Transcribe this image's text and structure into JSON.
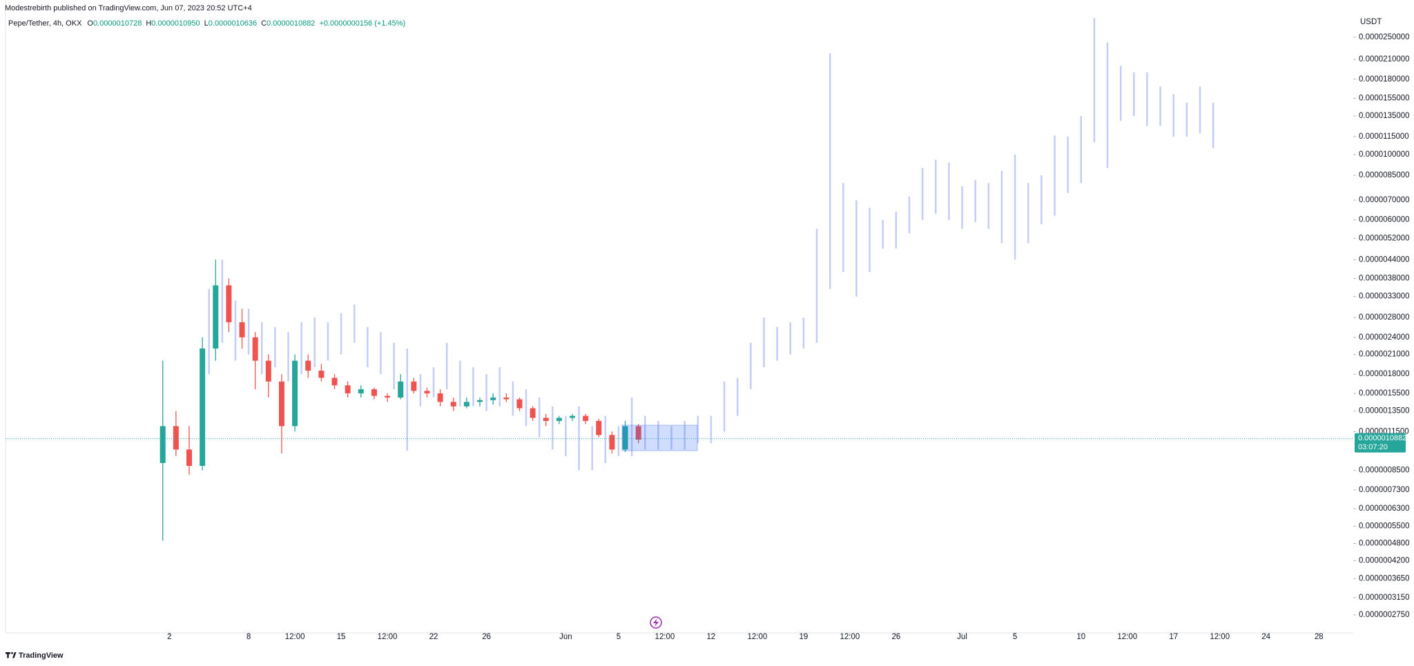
{
  "header": {
    "author": "Modestrebirth published on TradingView.com, Jun 07, 2023 20:52 UTC+4",
    "symbol": "Pepe/Tether, 4h, OKX",
    "open_label": "O",
    "open": "0.0000010728",
    "high_label": "H",
    "high": "0.0000010950",
    "low_label": "L",
    "low": "0.0000010636",
    "close_label": "C",
    "close": "0.0000010882",
    "change": "+0.0000000156 (+1.45%)"
  },
  "footer": {
    "brand": "TradingView"
  },
  "chart_data": {
    "type": "candlestick",
    "currency": "USDT",
    "log_scale": true,
    "up_color": "#26a69a",
    "down_color": "#ef5350",
    "projection_color": "#c3cdf7",
    "xlim": [
      -10.4,
      91.6
    ],
    "ylim": [
      2.39e-07,
      3.34e-05
    ],
    "xticks": [
      2,
      8,
      {
        "value": 11.5,
        "label": "12:00"
      },
      15,
      {
        "value": 18.5,
        "label": "12:00"
      },
      22,
      26,
      {
        "value": 32,
        "label": "Jun"
      },
      {
        "value": 36,
        "label": "5"
      },
      {
        "value": 39.5,
        "label": "12:00"
      },
      {
        "value": 43,
        "label": "12"
      },
      {
        "value": 46.5,
        "label": "12:00"
      },
      {
        "value": 50,
        "label": "19"
      },
      {
        "value": 53.5,
        "label": "12:00"
      },
      {
        "value": 57,
        "label": "26"
      },
      {
        "value": 62,
        "label": "Jul"
      },
      {
        "value": 66,
        "label": "5"
      },
      {
        "value": 71,
        "label": "10"
      },
      {
        "value": 74.5,
        "label": "12:00"
      },
      {
        "value": 78,
        "label": "17"
      },
      {
        "value": 81.5,
        "label": "12:00"
      },
      {
        "value": 85,
        "label": "24"
      },
      {
        "value": 89,
        "label": "28"
      }
    ],
    "yticks": [
      {
        "value": 2.5e-05,
        "label": "0.0000250000"
      },
      {
        "value": 2.1e-05,
        "label": "0.0000210000"
      },
      {
        "value": 1.8e-05,
        "label": "0.0000180000"
      },
      {
        "value": 1.55e-05,
        "label": "0.0000155000"
      },
      {
        "value": 1.35e-05,
        "label": "0.0000135000"
      },
      {
        "value": 1.15e-05,
        "label": "0.0000115000"
      },
      {
        "value": 1e-05,
        "label": "0.0000100000"
      },
      {
        "value": 8.5e-06,
        "label": "0.0000085000"
      },
      {
        "value": 7e-06,
        "label": "0.0000070000"
      },
      {
        "value": 6e-06,
        "label": "0.0000060000"
      },
      {
        "value": 5.2e-06,
        "label": "0.0000052000"
      },
      {
        "value": 4.4e-06,
        "label": "0.0000044000"
      },
      {
        "value": 3.8e-06,
        "label": "0.0000038000"
      },
      {
        "value": 3.3e-06,
        "label": "0.0000033000"
      },
      {
        "value": 2.8e-06,
        "label": "0.0000028000"
      },
      {
        "value": 2.4e-06,
        "label": "0.0000024000"
      },
      {
        "value": 2.1e-06,
        "label": "0.0000021000"
      },
      {
        "value": 1.8e-06,
        "label": "0.0000018000"
      },
      {
        "value": 1.55e-06,
        "label": "0.0000015500"
      },
      {
        "value": 1.35e-06,
        "label": "0.0000013500"
      },
      {
        "value": 1.15e-06,
        "label": "0.0000011500"
      },
      {
        "value": 8.5e-07,
        "label": "0.0000008500"
      },
      {
        "value": 7.3e-07,
        "label": "0.0000007300"
      },
      {
        "value": 6.3e-07,
        "label": "0.0000006300"
      },
      {
        "value": 5.5e-07,
        "label": "0.0000005500"
      },
      {
        "value": 4.8e-07,
        "label": "0.0000004800"
      },
      {
        "value": 4.2e-07,
        "label": "0.0000004200"
      },
      {
        "value": 3.65e-07,
        "label": "0.0000003650"
      },
      {
        "value": 3.15e-07,
        "label": "0.0000003150"
      },
      {
        "value": 2.75e-07,
        "label": "0.0000002750"
      }
    ],
    "price_line": {
      "value": 1.0882e-06,
      "label": "0.0000010882",
      "countdown": "03:07:20"
    },
    "candles": {
      "x": [
        1.5,
        2.5,
        3.5,
        4.5,
        5.5,
        6.5,
        7.5,
        8.5,
        9.5,
        10.5,
        11.5,
        12.5,
        13.5,
        14.5,
        15.5,
        16.5,
        17.5,
        18.5,
        19.5,
        20.5,
        21.5,
        22.5,
        23.5,
        24.5,
        25.5,
        26.5,
        27.5,
        28.5,
        29.5,
        30.5,
        31.5,
        32.5,
        33.5,
        34.5,
        35.5,
        36.5,
        37.5
      ],
      "open": [
        9e-07,
        1.2e-06,
        1e-06,
        8.8e-07,
        2.2e-06,
        3.6e-06,
        2.7e-06,
        2.4e-06,
        2e-06,
        1.7e-06,
        1.2e-06,
        2e-06,
        1.85e-06,
        1.75e-06,
        1.65e-06,
        1.55e-06,
        1.6e-06,
        1.52e-06,
        1.5e-06,
        1.7e-06,
        1.58e-06,
        1.55e-06,
        1.45e-06,
        1.4e-06,
        1.45e-06,
        1.47e-06,
        1.5e-06,
        1.48e-06,
        1.38e-06,
        1.28e-06,
        1.25e-06,
        1.28e-06,
        1.3e-06,
        1.25e-06,
        1.12e-06,
        1e-06,
        1.2e-06
      ],
      "high": [
        2e-06,
        1.35e-06,
        1.2e-06,
        2.4e-06,
        4.4e-06,
        3.8e-06,
        3e-06,
        2.5e-06,
        2.1e-06,
        1.8e-06,
        2.1e-06,
        2.1e-06,
        1.95e-06,
        1.8e-06,
        1.7e-06,
        1.65e-06,
        1.62e-06,
        1.55e-06,
        1.8e-06,
        1.75e-06,
        1.62e-06,
        1.6e-06,
        1.5e-06,
        1.5e-06,
        1.5e-06,
        1.55e-06,
        1.55e-06,
        1.5e-06,
        1.4e-06,
        1.32e-06,
        1.3e-06,
        1.32e-06,
        1.32e-06,
        1.27e-06,
        1.15e-06,
        1.25e-06,
        1.22e-06
      ],
      "low": [
        4.9e-07,
        9.5e-07,
        8.2e-07,
        8.5e-07,
        2e-06,
        2.5e-06,
        2.2e-06,
        1.6e-06,
        1.5e-06,
        9.7e-07,
        1.15e-06,
        1.75e-06,
        1.7e-06,
        1.6e-06,
        1.5e-06,
        1.5e-06,
        1.48e-06,
        1.45e-06,
        1.48e-06,
        1.55e-06,
        1.5e-06,
        1.4e-06,
        1.35e-06,
        1.38e-06,
        1.4e-06,
        1.42e-06,
        1.45e-06,
        1.35e-06,
        1.25e-06,
        1.2e-06,
        1.22e-06,
        1.25e-06,
        1.22e-06,
        1.1e-06,
        9.7e-07,
        9.8e-07,
        1.05e-06
      ],
      "close": [
        1.2e-06,
        1e-06,
        8.8e-07,
        2.2e-06,
        3.6e-06,
        2.7e-06,
        2.4e-06,
        2e-06,
        1.7e-06,
        1.2e-06,
        2e-06,
        1.85e-06,
        1.75e-06,
        1.65e-06,
        1.55e-06,
        1.6e-06,
        1.52e-06,
        1.5e-06,
        1.7e-06,
        1.58e-06,
        1.55e-06,
        1.45e-06,
        1.4e-06,
        1.45e-06,
        1.47e-06,
        1.5e-06,
        1.48e-06,
        1.38e-06,
        1.28e-06,
        1.25e-06,
        1.28e-06,
        1.3e-06,
        1.25e-06,
        1.12e-06,
        1e-06,
        1.2e-06,
        1.08e-06
      ]
    },
    "projection": {
      "x": [
        5,
        6,
        7,
        8,
        9,
        10,
        11,
        12,
        13,
        14,
        15,
        16,
        17,
        18,
        19,
        20,
        21,
        22,
        23,
        24,
        25,
        26,
        27,
        28,
        29,
        30,
        31,
        32,
        33,
        34,
        35,
        36,
        37,
        38,
        39,
        40,
        41,
        42,
        43,
        44,
        45,
        46,
        47,
        48,
        49,
        50,
        51,
        52,
        53,
        54,
        55,
        56,
        57,
        58,
        59,
        60,
        61,
        62,
        63,
        64,
        65,
        66,
        67,
        68,
        69,
        70,
        71,
        72,
        73,
        74,
        75,
        76,
        77,
        78,
        79,
        80,
        81
      ],
      "high": [
        3.5e-06,
        4.4e-06,
        3.2e-06,
        3e-06,
        2.7e-06,
        2.6e-06,
        2.5e-06,
        2.7e-06,
        2.8e-06,
        2.7e-06,
        2.9e-06,
        3.1e-06,
        2.6e-06,
        2.5e-06,
        2.3e-06,
        2.2e-06,
        1.8e-06,
        1.9e-06,
        2.3e-06,
        2e-06,
        1.9e-06,
        1.8e-06,
        1.9e-06,
        1.7e-06,
        1.6e-06,
        1.5e-06,
        1.4e-06,
        1.3e-06,
        1.4e-06,
        1.2e-06,
        1.3e-06,
        1.2e-06,
        1.5e-06,
        1.3e-06,
        1.25e-06,
        1.2e-06,
        1.25e-06,
        1.3e-06,
        1.3e-06,
        1.7e-06,
        1.75e-06,
        2.3e-06,
        2.8e-06,
        2.6e-06,
        2.7e-06,
        2.8e-06,
        5.6e-06,
        2.2e-05,
        8e-06,
        7e-06,
        6.6e-06,
        6e-06,
        6.4e-06,
        7.2e-06,
        9e-06,
        9.6e-06,
        9.4e-06,
        7.8e-06,
        8.2e-06,
        8e-06,
        8.8e-06,
        1e-05,
        8e-06,
        8.5e-06,
        1.16e-05,
        1.15e-05,
        1.35e-05,
        2.9e-05,
        2.4e-05,
        2e-05,
        1.9e-05,
        1.9e-05,
        1.7e-05,
        1.6e-05,
        1.5e-05,
        1.7e-05,
        1.5e-05
      ],
      "low": [
        1.8e-06,
        2.3e-06,
        2e-06,
        2.1e-06,
        1.8e-06,
        1.9e-06,
        1.7e-06,
        1.8e-06,
        1.9e-06,
        2e-06,
        2.1e-06,
        2.3e-06,
        1.9e-06,
        1.8e-06,
        1.6e-06,
        9.9e-07,
        1.4e-06,
        1.5e-06,
        1.6e-06,
        1.4e-06,
        1.4e-06,
        1.35e-06,
        1.4e-06,
        1.3e-06,
        1.2e-06,
        1.1e-06,
        1e-06,
        9.5e-07,
        8.5e-07,
        8.5e-07,
        9e-07,
        9.5e-07,
        9.5e-07,
        1e-06,
        1e-06,
        1e-06,
        1e-06,
        1.05e-06,
        1.05e-06,
        1.15e-06,
        1.3e-06,
        1.6e-06,
        1.9e-06,
        2e-06,
        2.1e-06,
        2.2e-06,
        2.3e-06,
        3.5e-06,
        4e-06,
        3.3e-06,
        4e-06,
        4.8e-06,
        4.8e-06,
        5.4e-06,
        6e-06,
        6.3e-06,
        6e-06,
        5.6e-06,
        5.9e-06,
        5.6e-06,
        5e-06,
        4.4e-06,
        5e-06,
        5.8e-06,
        6.2e-06,
        7.4e-06,
        8e-06,
        1.1e-05,
        9e-06,
        1.3e-05,
        1.35e-05,
        1.25e-05,
        1.25e-05,
        1.15e-05,
        1.15e-05,
        1.18e-05,
        1.05e-05
      ]
    }
  }
}
